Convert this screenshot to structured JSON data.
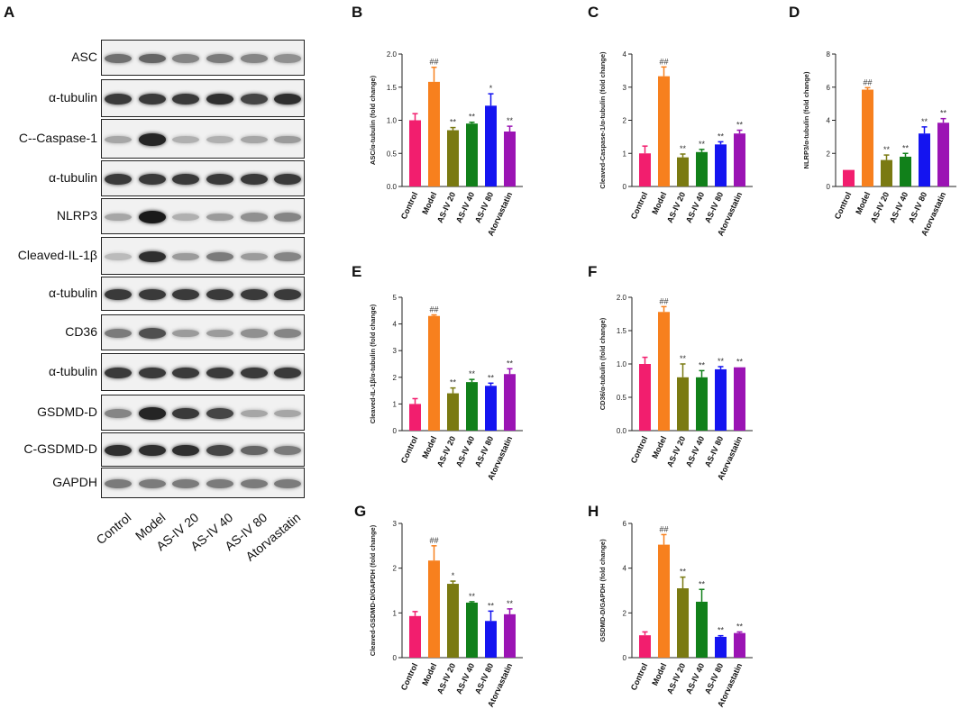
{
  "panel_labels": [
    "A",
    "B",
    "C",
    "D",
    "E",
    "F",
    "G",
    "H"
  ],
  "western_blot": {
    "rows": [
      {
        "label": "ASC",
        "intensity": [
          0.55,
          0.6,
          0.45,
          0.5,
          0.45,
          0.4
        ]
      },
      {
        "label": "α-tubulin",
        "intensity": [
          0.8,
          0.8,
          0.8,
          0.85,
          0.75,
          0.85
        ]
      },
      {
        "label": "C--Caspase-1",
        "intensity": [
          0.3,
          0.9,
          0.25,
          0.25,
          0.3,
          0.35
        ]
      },
      {
        "label": "α-tubulin",
        "intensity": [
          0.8,
          0.8,
          0.8,
          0.8,
          0.8,
          0.8
        ]
      },
      {
        "label": "NLRP3",
        "intensity": [
          0.3,
          0.95,
          0.25,
          0.35,
          0.4,
          0.45
        ]
      },
      {
        "label": "Cleaved-IL-1β",
        "intensity": [
          0.2,
          0.85,
          0.35,
          0.5,
          0.35,
          0.45
        ]
      },
      {
        "label": "α-tubulin",
        "intensity": [
          0.8,
          0.8,
          0.8,
          0.8,
          0.8,
          0.8
        ]
      },
      {
        "label": "CD36",
        "intensity": [
          0.5,
          0.7,
          0.35,
          0.35,
          0.4,
          0.45
        ]
      },
      {
        "label": "α-tubulin",
        "intensity": [
          0.8,
          0.8,
          0.8,
          0.8,
          0.8,
          0.8
        ]
      },
      {
        "label": "GSDMD-D",
        "intensity": [
          0.45,
          0.9,
          0.8,
          0.75,
          0.3,
          0.3
        ]
      },
      {
        "label": "C-GSDMD-D",
        "intensity": [
          0.85,
          0.85,
          0.85,
          0.75,
          0.6,
          0.5
        ]
      },
      {
        "label": "GAPDH",
        "intensity": [
          0.5,
          0.5,
          0.5,
          0.5,
          0.5,
          0.5
        ]
      }
    ],
    "lanes": [
      "Control",
      "Model",
      "AS-IV 20",
      "AS-IV 40",
      "AS-IV 80",
      "Atorvastatin"
    ]
  },
  "chart_data": [
    {
      "panel": "B",
      "type": "bar",
      "categories": [
        "Control",
        "Model",
        "AS-IV 20",
        "AS-IV 40",
        "AS-IV 80",
        "Atorvastatin"
      ],
      "values": [
        1.0,
        1.58,
        0.85,
        0.95,
        1.22,
        0.83
      ],
      "errors": [
        0.1,
        0.22,
        0.04,
        0.02,
        0.18,
        0.08
      ],
      "annotations": [
        "",
        "##",
        "**",
        "**",
        "*",
        "**"
      ],
      "ylabel": "ASC/α-tubulin (fold change)",
      "ylim": [
        0,
        2.0
      ],
      "yticks": [
        "0.0",
        "0.5",
        "1.0",
        "1.5",
        "2.0"
      ]
    },
    {
      "panel": "C",
      "type": "bar",
      "categories": [
        "Control",
        "Model",
        "AS-IV 20",
        "AS-IV 40",
        "AS-IV 80",
        "Atorvastatin"
      ],
      "values": [
        1.0,
        3.33,
        0.88,
        1.04,
        1.27,
        1.6
      ],
      "errors": [
        0.22,
        0.28,
        0.1,
        0.08,
        0.08,
        0.1
      ],
      "annotations": [
        "",
        "##",
        "**",
        "**",
        "**",
        "**"
      ],
      "ylabel": "Cleaved-Caspase-1/α-tubulin (fold change)",
      "ylim": [
        0,
        4
      ],
      "yticks": [
        "0",
        "1",
        "2",
        "3",
        "4"
      ]
    },
    {
      "panel": "D",
      "type": "bar",
      "categories": [
        "Control",
        "Model",
        "AS-IV 20",
        "AS-IV 40",
        "AS-IV 80",
        "Atorvastatin"
      ],
      "values": [
        1.0,
        5.85,
        1.6,
        1.8,
        3.2,
        3.85
      ],
      "errors": [
        0.0,
        0.12,
        0.3,
        0.2,
        0.4,
        0.25
      ],
      "annotations": [
        "",
        "##",
        "**",
        "**",
        "**",
        "**"
      ],
      "ylabel": "NLRP3/α-tubulin (fold change)",
      "ylim": [
        0,
        8
      ],
      "yticks": [
        "0",
        "2",
        "4",
        "6",
        "8"
      ]
    },
    {
      "panel": "E",
      "type": "bar",
      "categories": [
        "Control",
        "Model",
        "AS-IV 20",
        "AS-IV 40",
        "AS-IV 80",
        "Atorvastatin"
      ],
      "values": [
        1.0,
        4.3,
        1.4,
        1.82,
        1.68,
        2.12
      ],
      "errors": [
        0.2,
        0.04,
        0.2,
        0.1,
        0.1,
        0.2
      ],
      "annotations": [
        "",
        "##",
        "**",
        "**",
        "**",
        "**"
      ],
      "ylabel": "Cleaved-IL-1β/α-tubulin (fold change)",
      "ylim": [
        0,
        5
      ],
      "yticks": [
        "0",
        "1",
        "2",
        "3",
        "4",
        "5"
      ]
    },
    {
      "panel": "F",
      "type": "bar",
      "categories": [
        "Control",
        "Model",
        "AS-IV 20",
        "AS-IV 40",
        "AS-IV 80",
        "Atorvastatin"
      ],
      "values": [
        1.0,
        1.78,
        0.8,
        0.8,
        0.92,
        0.95
      ],
      "errors": [
        0.1,
        0.08,
        0.2,
        0.1,
        0.04,
        0.0
      ],
      "annotations": [
        "",
        "##",
        "**",
        "**",
        "**",
        "**"
      ],
      "ylabel": "CD36/α-tubulin (fold change)",
      "ylim": [
        0,
        2.0
      ],
      "yticks": [
        "0.0",
        "0.5",
        "1.0",
        "1.5",
        "2.0"
      ]
    },
    {
      "panel": "G",
      "type": "bar",
      "categories": [
        "Control",
        "Model",
        "AS-IV 20",
        "AS-IV 40",
        "AS-IV 80",
        "Atorvastatin"
      ],
      "values": [
        0.93,
        2.17,
        1.65,
        1.23,
        0.82,
        0.97
      ],
      "errors": [
        0.1,
        0.33,
        0.06,
        0.02,
        0.22,
        0.12
      ],
      "annotations": [
        "",
        "##",
        "*",
        "**",
        "**",
        "**"
      ],
      "ylabel": "Cleaved-GSDMD-D/GAPDH (fold change)",
      "ylim": [
        0,
        3
      ],
      "yticks": [
        "0",
        "1",
        "2",
        "3"
      ]
    },
    {
      "panel": "H",
      "type": "bar",
      "categories": [
        "Control",
        "Model",
        "AS-IV 20",
        "AS-IV 40",
        "AS-IV 80",
        "Atorvastatin"
      ],
      "values": [
        1.0,
        5.05,
        3.1,
        2.5,
        0.93,
        1.1
      ],
      "errors": [
        0.15,
        0.45,
        0.5,
        0.55,
        0.05,
        0.05
      ],
      "annotations": [
        "",
        "##",
        "**",
        "**",
        "**",
        "**"
      ],
      "ylabel": "GSDMD-D/GAPDH (fold change)",
      "ylim": [
        0,
        6
      ],
      "yticks": [
        "0",
        "2",
        "4",
        "6"
      ]
    }
  ],
  "bar_colors": [
    "#f21e6e",
    "#f7801e",
    "#7a7a12",
    "#11801a",
    "#1414f0",
    "#9b14b4"
  ]
}
